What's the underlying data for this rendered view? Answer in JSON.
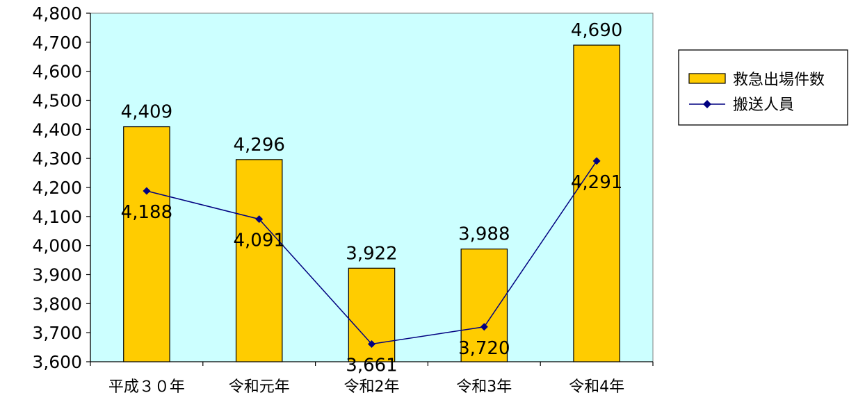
{
  "chart_data": {
    "type": "bar",
    "categories": [
      "平成３０年",
      "令和元年",
      "令和2年",
      "令和3年",
      "令和4年"
    ],
    "ylim": [
      3600,
      4800
    ],
    "yticks": [
      3600,
      3700,
      3800,
      3900,
      4000,
      4100,
      4200,
      4300,
      4400,
      4500,
      4600,
      4700,
      4800
    ],
    "ytick_labels": [
      "3,600",
      "3,700",
      "3,800",
      "3,900",
      "4,000",
      "4,100",
      "4,200",
      "4,300",
      "4,400",
      "4,500",
      "4,600",
      "4,700",
      "4,800"
    ],
    "grid": false,
    "legend_position": "right",
    "series": [
      {
        "name": "救急出場件数",
        "type": "bar",
        "values": [
          4409,
          4296,
          3922,
          3988,
          4690
        ],
        "labels": [
          "4,409",
          "4,296",
          "3,922",
          "3,988",
          "4,690"
        ],
        "color": "#FFCC00"
      },
      {
        "name": "搬送人員",
        "type": "line",
        "values": [
          4188,
          4091,
          3661,
          3720,
          4291
        ],
        "labels": [
          "4,188",
          "4,091",
          "3,661",
          "3,720",
          "4,291"
        ],
        "color": "#000080"
      }
    ],
    "plot_background": "#CCFFFF"
  }
}
